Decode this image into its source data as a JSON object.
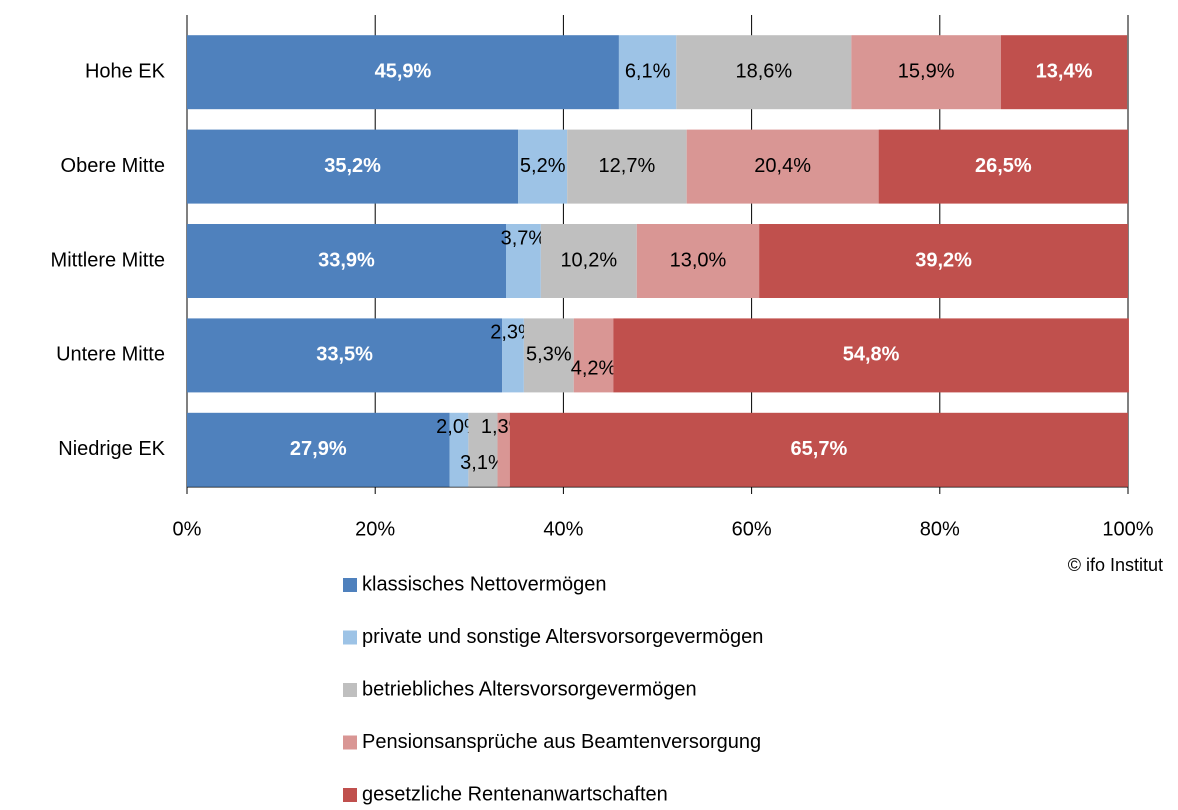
{
  "chart_data": {
    "type": "stacked_barh",
    "categories": [
      "Hohe EK",
      "Obere Mitte",
      "Mittlere Mitte",
      "Untere Mitte",
      "Niedrige EK"
    ],
    "series": [
      {
        "name": "klassisches Nettovermögen",
        "color": "#4f81bd",
        "label_color": "#ffffff",
        "label_bold": true,
        "values": [
          45.9,
          35.2,
          33.9,
          33.5,
          27.9
        ],
        "value_labels": [
          "45,9%",
          "35,2%",
          "33,9%",
          "33,5%",
          "27,9%"
        ]
      },
      {
        "name": "private und sonstige Altersvorsorgevermögen",
        "color": "#9dc3e6",
        "label_color": "#000000",
        "label_bold": false,
        "values": [
          6.1,
          5.2,
          3.7,
          2.3,
          2.0
        ],
        "value_labels": [
          "6,1%",
          "5,2%",
          "3,7%",
          "2,3%",
          "2,0%"
        ]
      },
      {
        "name": "betriebliches Altersvorsorgevermögen",
        "color": "#bfbfbf",
        "label_color": "#000000",
        "label_bold": false,
        "values": [
          18.6,
          12.7,
          10.2,
          5.3,
          3.1
        ],
        "value_labels": [
          "18,6%",
          "12,7%",
          "10,2%",
          "5,3%",
          "3,1%"
        ]
      },
      {
        "name": "Pensionsansprüche aus Beamtenversorgung",
        "color": "#d99694",
        "label_color": "#000000",
        "label_bold": false,
        "values": [
          15.9,
          20.4,
          13.0,
          4.2,
          1.3
        ],
        "value_labels": [
          "15,9%",
          "20,4%",
          "13,0%",
          "4,2%",
          "1,3%"
        ]
      },
      {
        "name": "gesetzliche Rentenanwartschaften",
        "color": "#c0504d",
        "label_color": "#ffffff",
        "label_bold": true,
        "values": [
          13.4,
          26.5,
          39.2,
          54.8,
          65.7
        ],
        "value_labels": [
          "13,4%",
          "26,5%",
          "39,2%",
          "54,8%",
          "65,7%"
        ]
      }
    ],
    "xlim": [
      0,
      100
    ],
    "xticks": [
      {
        "value": 0,
        "label": "0%"
      },
      {
        "value": 20,
        "label": "20%"
      },
      {
        "value": 40,
        "label": "40%"
      },
      {
        "value": 60,
        "label": "60%"
      },
      {
        "value": 80,
        "label": "80%"
      },
      {
        "value": 100,
        "label": "100%"
      }
    ],
    "grid": true,
    "annotation": "© ifo Institut"
  }
}
